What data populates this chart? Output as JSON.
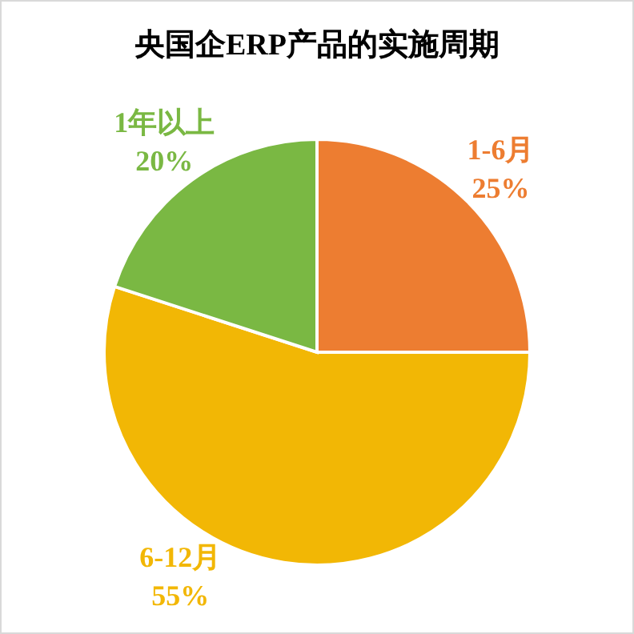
{
  "chart_data": {
    "type": "pie",
    "title": "央国企ERP产品的实施周期",
    "categories": [
      "1-6月",
      "6-12月",
      "1年以上"
    ],
    "values": [
      25,
      55,
      20
    ],
    "value_labels": [
      "25%",
      "55%",
      "20%"
    ],
    "colors": [
      "#ed7d31",
      "#f2b705",
      "#7ab843"
    ],
    "legend": false
  }
}
